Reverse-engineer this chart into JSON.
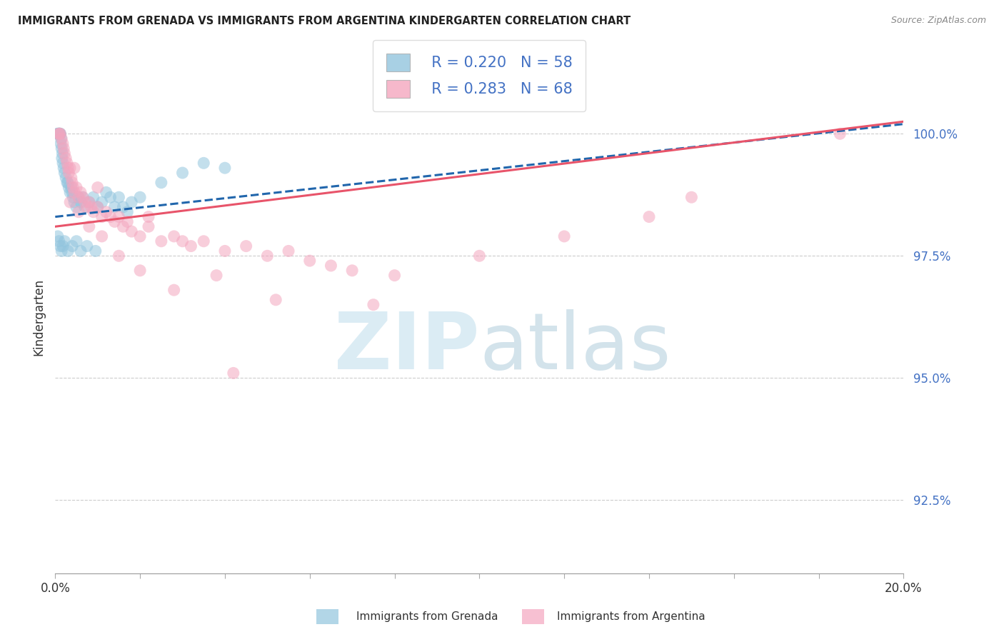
{
  "title": "IMMIGRANTS FROM GRENADA VS IMMIGRANTS FROM ARGENTINA KINDERGARTEN CORRELATION CHART",
  "source": "Source: ZipAtlas.com",
  "ylabel": "Kindergarten",
  "yticks": [
    92.5,
    95.0,
    97.5,
    100.0
  ],
  "ytick_labels": [
    "92.5%",
    "95.0%",
    "97.5%",
    "100.0%"
  ],
  "xlim": [
    0.0,
    20.0
  ],
  "ylim": [
    91.0,
    101.5
  ],
  "legend_blue_R": "R = 0.220",
  "legend_blue_N": "N = 58",
  "legend_pink_R": "R = 0.283",
  "legend_pink_N": "N = 68",
  "color_blue": "#92c5de",
  "color_pink": "#f4a6bf",
  "color_blue_line": "#2166ac",
  "color_pink_line": "#e8546a",
  "label_blue": "Immigrants from Grenada",
  "label_pink": "Immigrants from Argentina",
  "blue_x": [
    0.05,
    0.07,
    0.08,
    0.09,
    0.1,
    0.1,
    0.11,
    0.12,
    0.13,
    0.14,
    0.15,
    0.16,
    0.17,
    0.18,
    0.2,
    0.22,
    0.25,
    0.28,
    0.3,
    0.32,
    0.35,
    0.38,
    0.4,
    0.42,
    0.45,
    0.5,
    0.55,
    0.6,
    0.65,
    0.7,
    0.8,
    0.9,
    1.0,
    1.1,
    1.2,
    1.3,
    1.4,
    1.5,
    1.6,
    1.7,
    1.8,
    2.0,
    2.5,
    3.0,
    3.5,
    4.0,
    0.06,
    0.09,
    0.12,
    0.15,
    0.18,
    0.22,
    0.3,
    0.4,
    0.5,
    0.6,
    0.75,
    0.95
  ],
  "blue_y": [
    100.0,
    100.0,
    100.0,
    100.0,
    100.0,
    100.0,
    100.0,
    100.0,
    99.8,
    99.9,
    99.7,
    99.5,
    99.6,
    99.4,
    99.3,
    99.2,
    99.1,
    99.0,
    99.0,
    98.9,
    98.8,
    98.9,
    98.8,
    98.7,
    98.6,
    98.5,
    98.7,
    98.6,
    98.7,
    98.5,
    98.6,
    98.7,
    98.5,
    98.6,
    98.8,
    98.7,
    98.5,
    98.7,
    98.5,
    98.4,
    98.6,
    98.7,
    99.0,
    99.2,
    99.4,
    99.3,
    97.9,
    97.8,
    97.7,
    97.6,
    97.7,
    97.8,
    97.6,
    97.7,
    97.8,
    97.6,
    97.7,
    97.6
  ],
  "pink_x": [
    0.08,
    0.1,
    0.12,
    0.15,
    0.18,
    0.2,
    0.22,
    0.25,
    0.28,
    0.3,
    0.32,
    0.35,
    0.38,
    0.4,
    0.42,
    0.45,
    0.5,
    0.55,
    0.6,
    0.65,
    0.7,
    0.75,
    0.8,
    0.85,
    0.9,
    1.0,
    1.1,
    1.2,
    1.3,
    1.4,
    1.5,
    1.6,
    1.7,
    1.8,
    2.0,
    2.2,
    2.5,
    2.8,
    3.0,
    3.2,
    3.5,
    4.0,
    4.5,
    5.0,
    5.5,
    6.0,
    6.5,
    7.0,
    8.0,
    10.0,
    12.0,
    14.0,
    15.0,
    18.5,
    0.35,
    0.55,
    0.8,
    1.1,
    1.5,
    2.0,
    2.8,
    3.8,
    5.2,
    7.5,
    4.2,
    2.2,
    1.0,
    0.45
  ],
  "pink_y": [
    100.0,
    100.0,
    100.0,
    99.9,
    99.8,
    99.7,
    99.6,
    99.5,
    99.4,
    99.3,
    99.2,
    99.3,
    99.1,
    99.0,
    98.9,
    98.8,
    98.9,
    98.7,
    98.8,
    98.7,
    98.6,
    98.5,
    98.6,
    98.5,
    98.4,
    98.5,
    98.3,
    98.4,
    98.3,
    98.2,
    98.3,
    98.1,
    98.2,
    98.0,
    97.9,
    98.1,
    97.8,
    97.9,
    97.8,
    97.7,
    97.8,
    97.6,
    97.7,
    97.5,
    97.6,
    97.4,
    97.3,
    97.2,
    97.1,
    97.5,
    97.9,
    98.3,
    98.7,
    100.0,
    98.6,
    98.4,
    98.1,
    97.9,
    97.5,
    97.2,
    96.8,
    97.1,
    96.6,
    96.5,
    95.1,
    98.3,
    98.9,
    99.3
  ],
  "blue_trend_x": [
    0.0,
    20.0
  ],
  "blue_trend_y": [
    98.3,
    100.2
  ],
  "pink_trend_x": [
    0.0,
    20.0
  ],
  "pink_trend_y": [
    98.1,
    100.25
  ],
  "xtick_positions": [
    0,
    2,
    4,
    6,
    8,
    10,
    12,
    14,
    16,
    18,
    20
  ]
}
